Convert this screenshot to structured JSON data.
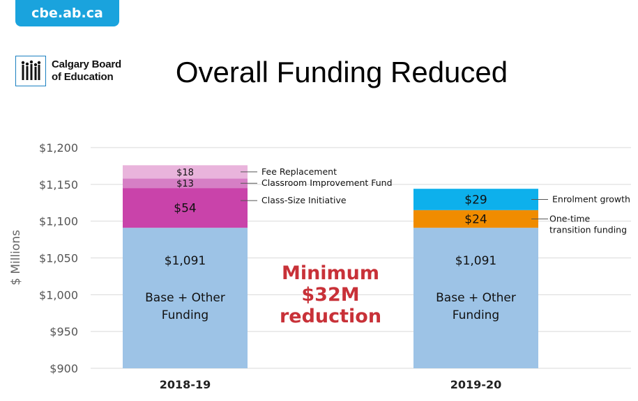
{
  "header": {
    "site_tab": "cbe.ab.ca",
    "logo_line1": "Calgary Board",
    "logo_line2": "of Education"
  },
  "chart_data": {
    "type": "bar",
    "stacked": true,
    "title": "Overall Funding Reduced",
    "ylabel": "$ Millions",
    "ylim": [
      900,
      1200
    ],
    "yticks": [
      900,
      950,
      1000,
      1050,
      1100,
      1150,
      1200
    ],
    "ytick_labels": [
      "$900",
      "$950",
      "$1,000",
      "$1,050",
      "$1,100",
      "$1,150",
      "$1,200"
    ],
    "grid": true,
    "categories": [
      "2018-19",
      "2019-20"
    ],
    "bars": [
      {
        "category": "2018-19",
        "segments": [
          {
            "name": "Base + Other Funding",
            "value": 1091,
            "label": "$1,091",
            "color": "#9dc3e6",
            "annotation": ""
          },
          {
            "name": "Class-Size Initiative",
            "value": 54,
            "label": "$54",
            "color": "#c943aa",
            "annotation": "Class-Size Initiative"
          },
          {
            "name": "Classroom Improvement Fund",
            "value": 13,
            "label": "$13",
            "color": "#d67fc5",
            "annotation": "Classroom Improvement Fund"
          },
          {
            "name": "Fee Replacement",
            "value": 18,
            "label": "$18",
            "color": "#e9b4dc",
            "annotation": "Fee Replacement"
          }
        ]
      },
      {
        "category": "2019-20",
        "segments": [
          {
            "name": "Base + Other Funding",
            "value": 1091,
            "label": "$1,091",
            "color": "#9dc3e6",
            "annotation": ""
          },
          {
            "name": "One-time transition funding",
            "value": 24,
            "label": "$24",
            "color": "#f08c00",
            "annotation": "One-time transition funding"
          },
          {
            "name": "Enrolment growth",
            "value": 29,
            "label": "$29",
            "color": "#0db0ec",
            "annotation": "Enrolment growth"
          }
        ]
      }
    ],
    "base_text": "Base + Other Funding",
    "callout": [
      "Minimum",
      "$32M",
      "reduction"
    ]
  }
}
